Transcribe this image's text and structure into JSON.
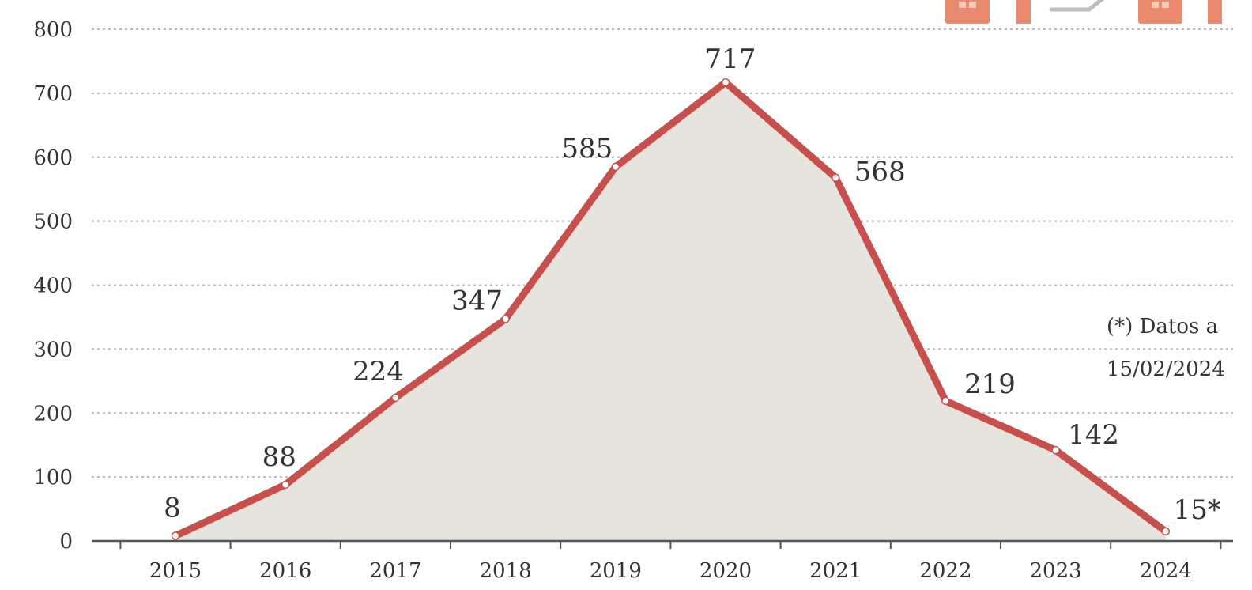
{
  "chart_data": {
    "type": "area",
    "x": [
      "2015",
      "2016",
      "2017",
      "2018",
      "2019",
      "2020",
      "2021",
      "2022",
      "2023",
      "2024"
    ],
    "values": [
      8,
      88,
      224,
      347,
      585,
      717,
      568,
      219,
      142,
      15
    ],
    "data_labels": [
      "8",
      "88",
      "224",
      "347",
      "585",
      "717",
      "568",
      "219",
      "142",
      "15*"
    ],
    "ylim": [
      0,
      800
    ],
    "yticks": [
      0,
      100,
      200,
      300,
      400,
      500,
      600,
      700,
      800
    ],
    "grid": true,
    "title": "",
    "xlabel": "",
    "ylabel": "",
    "note_lines": [
      "(*) Datos a",
      "15/02/2024"
    ],
    "colors": {
      "line": "#c8504c",
      "area": "#e6e4df",
      "marker": "#ffffff",
      "icon": "#e98a6e"
    }
  }
}
